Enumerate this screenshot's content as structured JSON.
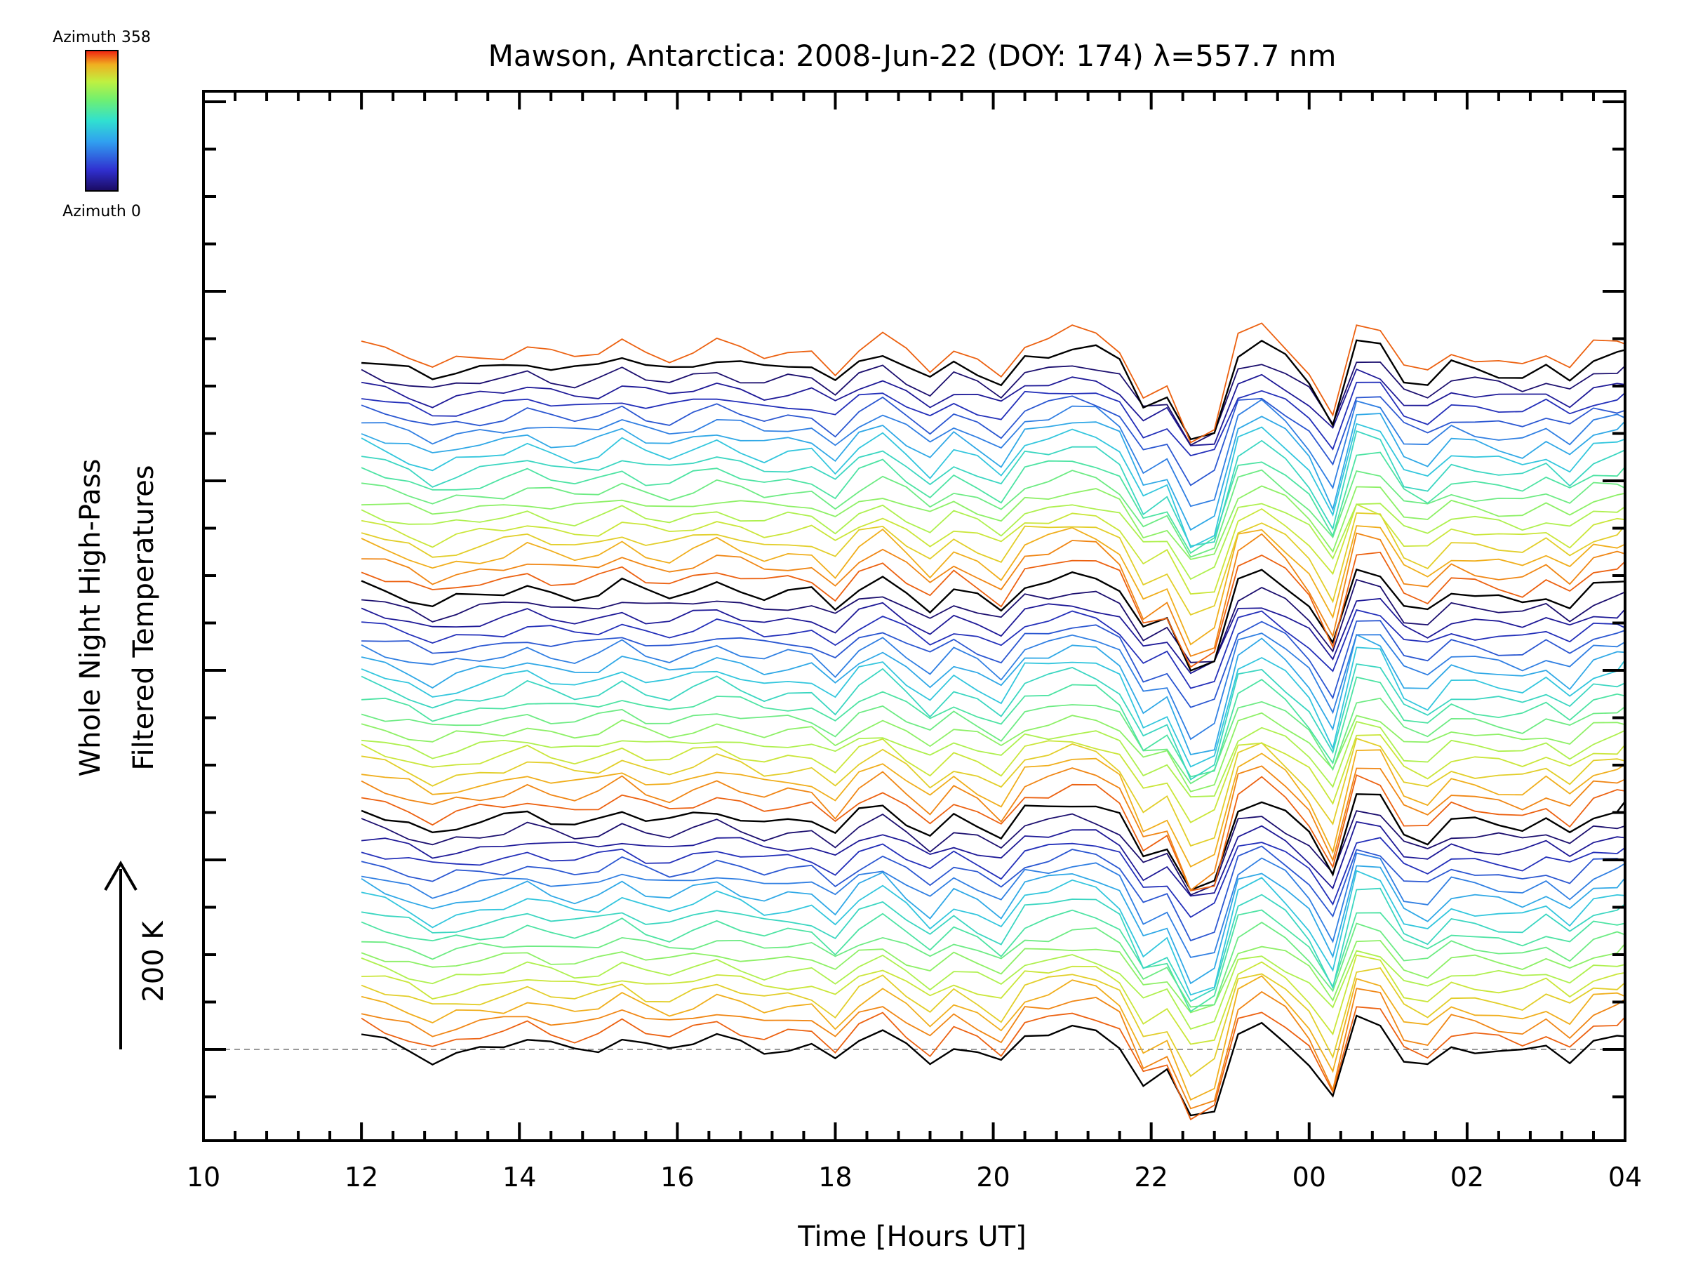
{
  "chart_data": {
    "type": "line",
    "title": "Mawson, Antarctica: 2008-Jun-22 (DOY: 174) λ=557.7 nm",
    "xlabel": "Time [Hours UT]",
    "ylabel_line1": "Whole Night High-Pass",
    "ylabel_line2": "Filtered Temperatures",
    "scale_bar_label": "200 K",
    "colorbar": {
      "top_label": "Azimuth 358",
      "bottom_label": "Azimuth 0",
      "min": 0,
      "max": 358
    },
    "x_ticks": [
      "10",
      "12",
      "14",
      "16",
      "18",
      "20",
      "22",
      "00",
      "02",
      "04"
    ],
    "xlim_hours": [
      10,
      28
    ],
    "x_hours": [
      12.0,
      12.3,
      12.6,
      12.9,
      13.2,
      13.5,
      13.8,
      14.1,
      14.4,
      14.7,
      15.0,
      15.3,
      15.6,
      15.9,
      16.2,
      16.5,
      16.8,
      17.1,
      17.4,
      17.7,
      18.0,
      18.3,
      18.6,
      18.9,
      19.2,
      19.5,
      19.8,
      20.1,
      20.4,
      20.7,
      21.0,
      21.3,
      21.6,
      21.9,
      22.2,
      22.5,
      22.8,
      23.1,
      23.4,
      23.7,
      24.0,
      24.3,
      24.6,
      24.9,
      25.2,
      25.5,
      25.8,
      26.1,
      26.4,
      26.7,
      27.0,
      27.3,
      27.6,
      27.9,
      28.0
    ],
    "y_units": "K",
    "ylim_K": [
      -100,
      2000
    ],
    "baseline_K": 0,
    "series_spacing_K": 20,
    "series_count": 56,
    "base_profile_K": [
      20,
      10,
      0,
      -15,
      -5,
      0,
      5,
      15,
      5,
      0,
      5,
      20,
      5,
      0,
      10,
      20,
      10,
      0,
      5,
      5,
      -20,
      15,
      30,
      5,
      -20,
      10,
      -5,
      -25,
      20,
      25,
      35,
      30,
      10,
      -55,
      -40,
      -110,
      -95,
      25,
      40,
      15,
      -20,
      -80,
      45,
      40,
      -15,
      -25,
      5,
      0,
      -5,
      -10,
      5,
      -15,
      15,
      20,
      25
    ],
    "azimuth_color_stops": [
      "#1a0a60",
      "#2020b0",
      "#3070e0",
      "#30c0e8",
      "#40e0b0",
      "#80f070",
      "#c0f040",
      "#f0c020",
      "#f07010",
      "#e03010"
    ],
    "top_series_azimuth": 190,
    "azimuth_cycle": [
      "#000000",
      "#e8a020",
      "#f07010",
      "#e05020",
      "#d09030",
      "#c0c030"
    ]
  }
}
